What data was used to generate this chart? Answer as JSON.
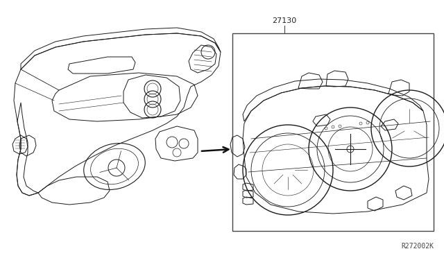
{
  "background_color": "#ffffff",
  "label_part_number": "27130",
  "diagram_ref": "R272002K",
  "line_color": "#1a1a1a",
  "box_line_color": "#444444",
  "arrow_color": "#111111",
  "lw": 0.7
}
